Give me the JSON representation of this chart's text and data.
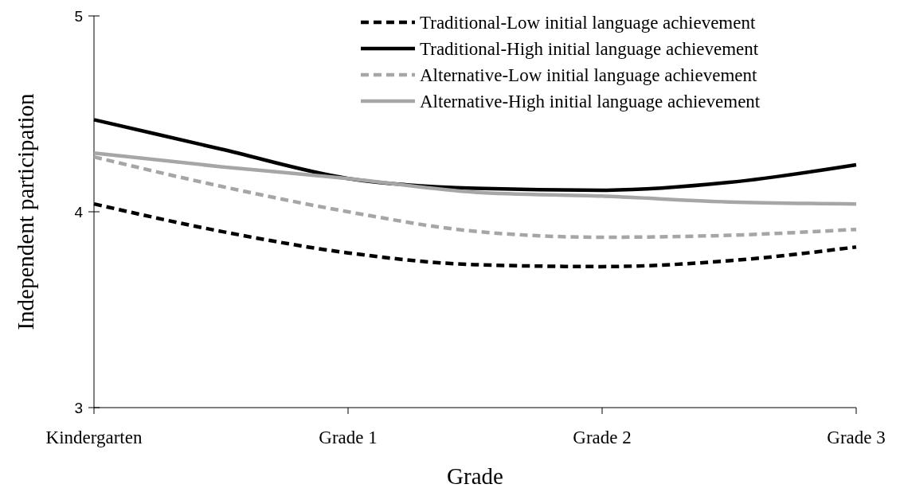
{
  "chart_data": {
    "type": "line",
    "xlabel": "Grade",
    "ylabel": "Independent participation",
    "categories": [
      "Kindergarten",
      null,
      "Grade 1",
      null,
      "Grade 2",
      null,
      "Grade 3"
    ],
    "ylim": [
      3,
      5
    ],
    "yticks": [
      3,
      4,
      5
    ],
    "grid": false,
    "legend": "top right",
    "marker": "none",
    "series": [
      {
        "name": "Traditional-Low initial language achievement",
        "color": "#000000",
        "line_style": "dashed",
        "values": [
          4.04,
          3.9,
          3.79,
          3.73,
          3.72,
          3.75,
          3.82
        ]
      },
      {
        "name": "Traditional-High initial language achievement",
        "color": "#000000",
        "line_style": "solid",
        "values": [
          4.47,
          4.32,
          4.17,
          4.12,
          4.11,
          4.15,
          4.24
        ]
      },
      {
        "name": "Alternative-Low initial language achievement",
        "color": "#a6a6a6",
        "line_style": "dashed",
        "values": [
          4.28,
          4.13,
          4.0,
          3.9,
          3.87,
          3.88,
          3.91
        ]
      },
      {
        "name": "Alternative-High initial language achievement",
        "color": "#a6a6a6",
        "line_style": "solid",
        "values": [
          4.3,
          4.23,
          4.17,
          4.1,
          4.08,
          4.05,
          4.04
        ]
      }
    ]
  }
}
